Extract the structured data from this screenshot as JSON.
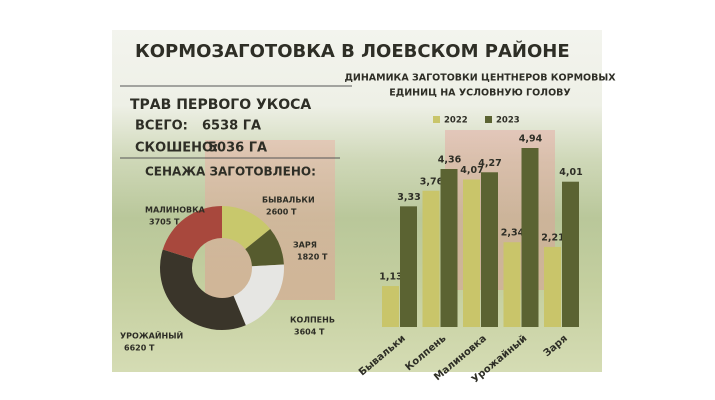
{
  "header": {
    "title": "КОРМОЗАГОТОВКА В ЛОЕВСКОМ РАЙОНЕ"
  },
  "summary": {
    "heading": "ТРАВ ПЕРВОГО УКОСА",
    "total_label": "ВСЕГО:",
    "total_value": "6538 ГА",
    "mowed_label": "СКОШЕНО:",
    "mowed_value": "5036 ГА",
    "silage_heading": "СЕНАЖА ЗАГОТОВЛЕНО:"
  },
  "chart_data": [
    {
      "type": "donut",
      "categories": [
        "БЫВАЛЬКИ",
        "ЗАРЯ",
        "КОЛПЕНЬ",
        "УРОЖАЙНЫЙ",
        "МАЛИНОВКА"
      ],
      "values": [
        2600,
        1820,
        3604,
        6620,
        3705
      ],
      "value_labels": [
        "2600 Т",
        "1820 Т",
        "3604 Т",
        "6620 Т",
        "3705 Т"
      ],
      "colors": [
        "#c8c86c",
        "#565b2e",
        "#e6e6e3",
        "#3a352a",
        "#a8483d"
      ]
    },
    {
      "type": "bar",
      "title": [
        "ДИНАМИКА ЗАГОТОВКИ ЦЕНТНЕРОВ КОРМОВЫХ",
        "ЕДИНИЦ НА УСЛОВНУЮ ГОЛОВУ"
      ],
      "categories": [
        "Бывальки",
        "Колпень",
        "Малиновка",
        "Урожайный",
        "Заря"
      ],
      "series": [
        {
          "name": "2022",
          "color": "#c9c56a",
          "values": [
            1.13,
            3.76,
            4.07,
            2.34,
            2.21
          ],
          "value_labels": [
            "1,13",
            "3,76",
            "4,07",
            "2,34",
            "2,21"
          ]
        },
        {
          "name": "2023",
          "color": "#5b6332",
          "values": [
            3.33,
            4.36,
            4.27,
            4.94,
            4.01
          ],
          "value_labels": [
            "3,33",
            "4,36",
            "4,27",
            "4,94",
            "4,01"
          ]
        }
      ]
    }
  ]
}
